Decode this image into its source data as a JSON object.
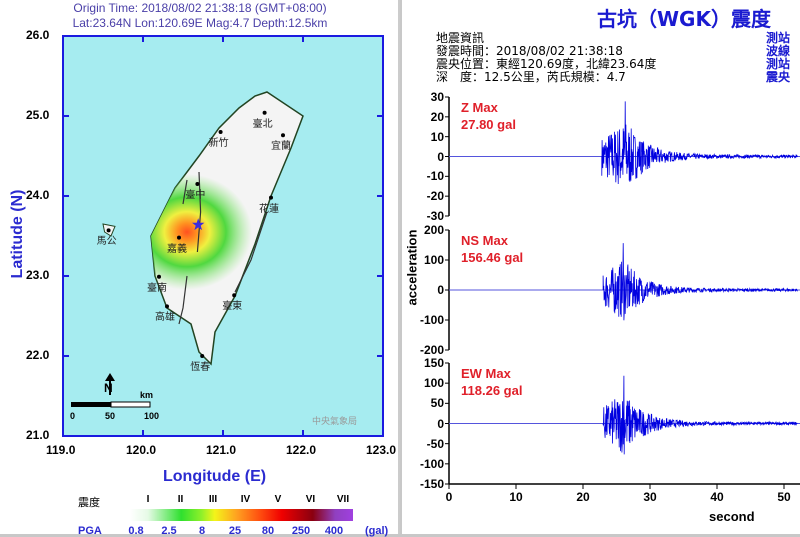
{
  "map": {
    "origin_line": "Origin Time: 2018/08/02 21:38:18 (GMT+08:00)",
    "location_line": "Lat:23.64N Lon:120.69E Mag:4.7 Depth:12.5km",
    "lat_ticks": [
      "26.0",
      "25.0",
      "24.0",
      "23.0",
      "22.0",
      "21.0"
    ],
    "lon_ticks": [
      "119.0",
      "120.0",
      "121.0",
      "122.0",
      "123.0"
    ],
    "y_title": "Latitude (N)",
    "x_title": "Longitude (E)",
    "epicenter": {
      "lon": 120.69,
      "lat": 23.64
    },
    "places": [
      {
        "name": "臺北",
        "lon": 121.52,
        "lat": 25.04
      },
      {
        "name": "新竹",
        "lon": 120.97,
        "lat": 24.8
      },
      {
        "name": "宜蘭",
        "lon": 121.75,
        "lat": 24.76
      },
      {
        "name": "臺中",
        "lon": 120.68,
        "lat": 24.15
      },
      {
        "name": "花蓮",
        "lon": 121.6,
        "lat": 23.98
      },
      {
        "name": "馬公",
        "lon": 119.57,
        "lat": 23.57
      },
      {
        "name": "嘉義",
        "lon": 120.45,
        "lat": 23.48
      },
      {
        "name": "臺南",
        "lon": 120.2,
        "lat": 22.99
      },
      {
        "name": "高雄",
        "lon": 120.3,
        "lat": 22.62
      },
      {
        "name": "臺東",
        "lon": 121.14,
        "lat": 22.76
      },
      {
        "name": "恆春",
        "lon": 120.74,
        "lat": 22.0
      }
    ],
    "scale_unit": "km",
    "scale_labels": [
      "0",
      "50",
      "100"
    ],
    "north_label": "N",
    "watermark": "中央氣象局",
    "colors": {
      "sea": "#a6ecf0",
      "land": "#f4f4f4",
      "frame": "#1a1ae0"
    }
  },
  "legend": {
    "intensity_label": "震度",
    "intensities": [
      "I",
      "II",
      "III",
      "IV",
      "V",
      "VI",
      "VII"
    ],
    "pga_label": "PGA",
    "pga_values": [
      "0.8",
      "2.5",
      "8",
      "25",
      "80",
      "250",
      "400"
    ],
    "pga_unit": "(gal)"
  },
  "station": {
    "title": "古坑（WGK）震度",
    "info_title": "地震資訊",
    "info_lines": [
      "發震時間：2018/08/02 21:38:18",
      "震央位置：東經120.69度，北緯23.64度",
      "深　度：12.5公里，芮氏規模：4.7"
    ],
    "right_col": [
      "測站",
      "波線",
      "測站",
      "震央"
    ]
  },
  "chart_data": {
    "type": "line",
    "xlabel": "second",
    "ylabel": "acceleration",
    "x_ticks": [
      "0",
      "10",
      "20",
      "30",
      "40",
      "50"
    ],
    "xlim": [
      0,
      52
    ],
    "series": [
      {
        "name": "Z",
        "label": "Z Max",
        "max": "27.80 gal",
        "peak": 27.8,
        "ylim": [
          -30,
          30
        ],
        "ticks": [
          "30",
          "20",
          "10",
          "0",
          "-10",
          "-20",
          "-30"
        ],
        "onset": 22.8,
        "peak_time": 26.3
      },
      {
        "name": "NS",
        "label": "NS Max",
        "max": "156.46 gal",
        "peak": 156.46,
        "ylim": [
          -200,
          200
        ],
        "ticks": [
          "200",
          "100",
          "0",
          "-100",
          "-200"
        ],
        "onset": 23.0,
        "peak_time": 26.0
      },
      {
        "name": "EW",
        "label": "EW Max",
        "max": "118.26 gal",
        "peak": 118.26,
        "ylim": [
          -150,
          150
        ],
        "ticks": [
          "150",
          "100",
          "50",
          "0",
          "-50",
          "-100",
          "-150"
        ],
        "onset": 23.0,
        "peak_time": 26.1
      }
    ]
  }
}
